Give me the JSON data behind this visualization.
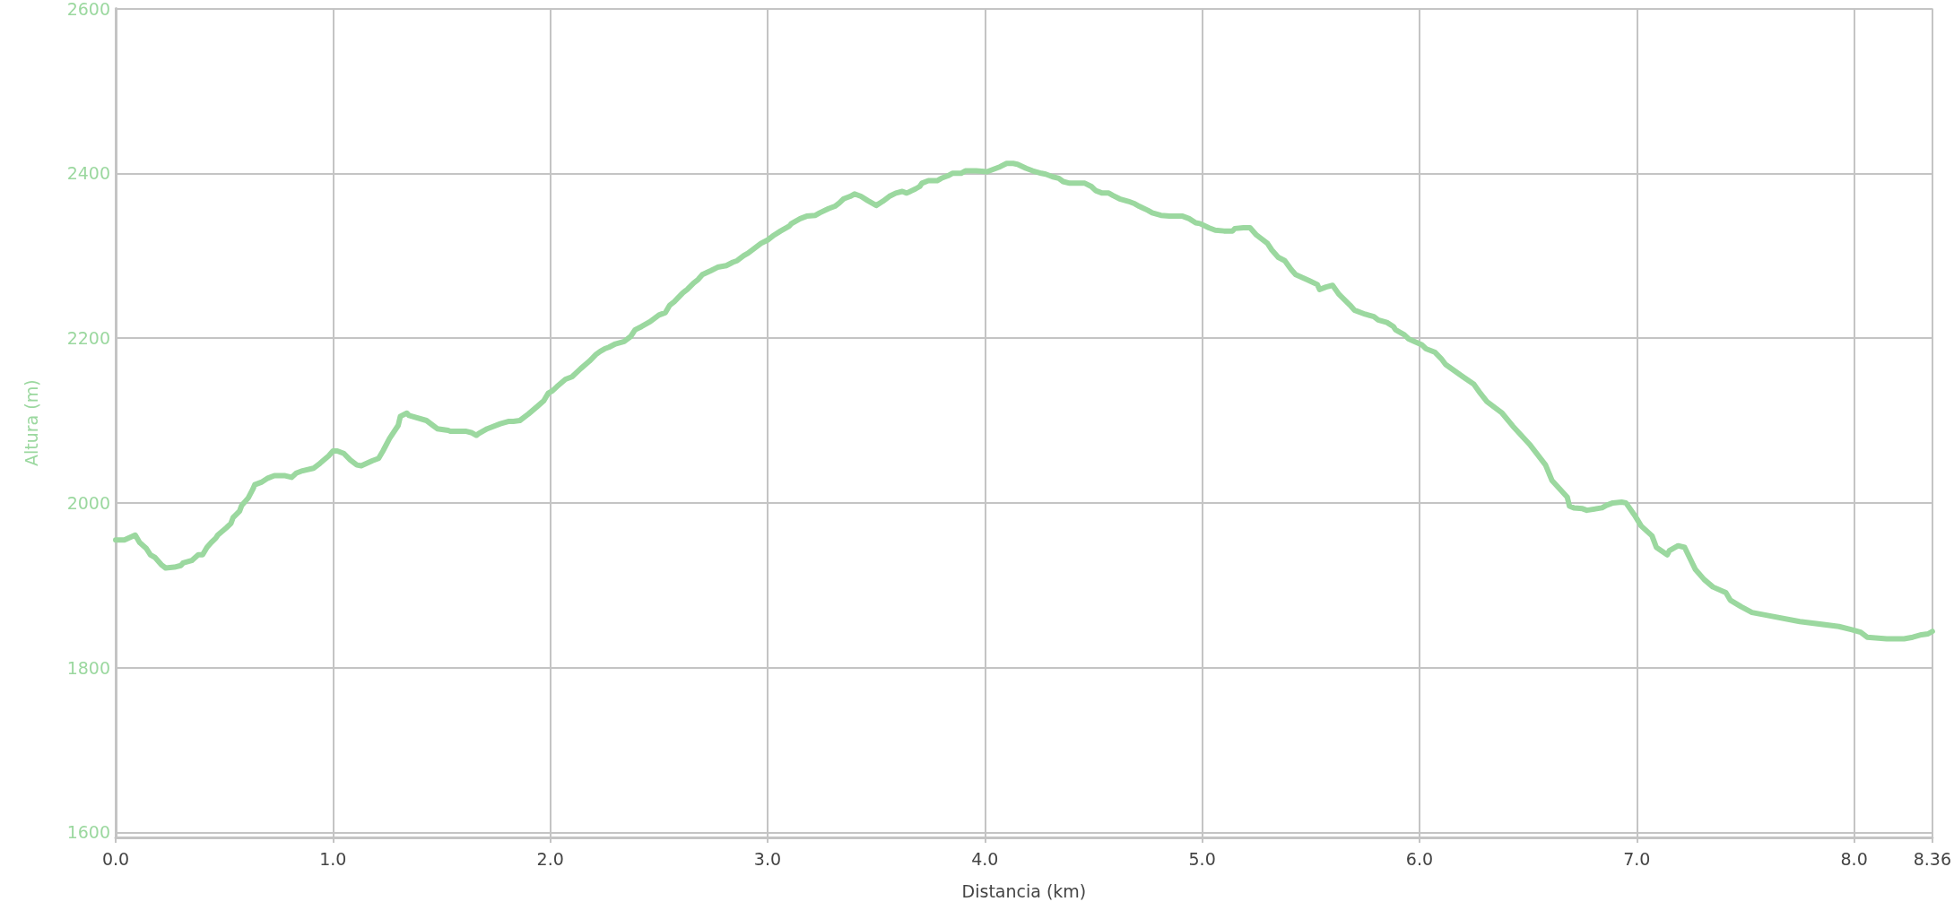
{
  "chart_data": {
    "type": "line",
    "xlabel": "Distancia (km)",
    "ylabel": "Altura (m)",
    "xlim": [
      0,
      8.36
    ],
    "ylim": [
      1594,
      2600
    ],
    "xticks": [
      {
        "value": 0,
        "label": "0.0"
      },
      {
        "value": 1,
        "label": "1.0"
      },
      {
        "value": 2,
        "label": "2.0"
      },
      {
        "value": 3,
        "label": "3.0"
      },
      {
        "value": 4,
        "label": "4.0"
      },
      {
        "value": 5,
        "label": "5.0"
      },
      {
        "value": 6,
        "label": "6.0"
      },
      {
        "value": 7,
        "label": "7.0"
      },
      {
        "value": 8,
        "label": "8.0"
      },
      8.36
    ],
    "yticks": [
      1600,
      1800,
      2000,
      2200,
      2400,
      2600
    ],
    "grid": true,
    "marker": "none",
    "line_style": "solid",
    "series": [
      {
        "color": "#9bd89f",
        "x": [
          0,
          0.04,
          0.09,
          0.11,
          0.14,
          0.16,
          0.18,
          0.21,
          0.23,
          0.27,
          0.3,
          0.31,
          0.35,
          0.38,
          0.4,
          0.42,
          0.44,
          0.46,
          0.47,
          0.51,
          0.53,
          0.54,
          0.57,
          0.58,
          0.61,
          0.63,
          0.64,
          0.67,
          0.7,
          0.73,
          0.78,
          0.81,
          0.83,
          0.86,
          0.91,
          0.94,
          0.98,
          1.0,
          1.02,
          1.05,
          1.08,
          1.11,
          1.13,
          1.18,
          1.21,
          1.23,
          1.26,
          1.3,
          1.31,
          1.34,
          1.35,
          1.43,
          1.46,
          1.48,
          1.53,
          1.54,
          1.61,
          1.64,
          1.66,
          1.67,
          1.71,
          1.77,
          1.81,
          1.83,
          1.86,
          1.9,
          1.94,
          1.97,
          1.99,
          2.01,
          2.03,
          2.07,
          2.1,
          2.14,
          2.18,
          2.21,
          2.23,
          2.25,
          2.27,
          2.3,
          2.34,
          2.37,
          2.39,
          2.42,
          2.46,
          2.5,
          2.53,
          2.55,
          2.57,
          2.61,
          2.63,
          2.66,
          2.68,
          2.7,
          2.74,
          2.77,
          2.81,
          2.84,
          2.86,
          2.89,
          2.91,
          2.94,
          2.97,
          3.0,
          3.03,
          3.06,
          3.1,
          3.11,
          3.15,
          3.18,
          3.22,
          3.24,
          3.28,
          3.31,
          3.33,
          3.35,
          3.38,
          3.4,
          3.43,
          3.46,
          3.48,
          3.5,
          3.53,
          3.56,
          3.59,
          3.62,
          3.64,
          3.68,
          3.7,
          3.71,
          3.74,
          3.78,
          3.8,
          3.83,
          3.85,
          3.89,
          3.91,
          3.96,
          4.01,
          4.04,
          4.07,
          4.1,
          4.13,
          4.15,
          4.19,
          4.22,
          4.26,
          4.28,
          4.31,
          4.34,
          4.36,
          4.39,
          4.46,
          4.49,
          4.51,
          4.54,
          4.57,
          4.59,
          4.62,
          4.66,
          4.69,
          4.71,
          4.75,
          4.77,
          4.81,
          4.85,
          4.91,
          4.94,
          4.97,
          4.99,
          5.03,
          5.06,
          5.1,
          5.14,
          5.15,
          5.19,
          5.22,
          5.25,
          5.3,
          5.32,
          5.35,
          5.38,
          5.41,
          5.43,
          5.49,
          5.53,
          5.54,
          5.57,
          5.6,
          5.63,
          5.68,
          5.7,
          5.75,
          5.79,
          5.81,
          5.85,
          5.88,
          5.89,
          5.93,
          5.95,
          6.01,
          6.03,
          6.07,
          6.1,
          6.12,
          6.2,
          6.25,
          6.28,
          6.31,
          6.34,
          6.38,
          6.43,
          6.51,
          6.58,
          6.61,
          6.68,
          6.69,
          6.71,
          6.75,
          6.77,
          6.84,
          6.86,
          6.89,
          6.93,
          6.95,
          6.99,
          7.02,
          7.07,
          7.09,
          7.14,
          7.15,
          7.19,
          7.22,
          7.27,
          7.31,
          7.35,
          7.41,
          7.43,
          7.48,
          7.53,
          7.59,
          7.75,
          7.93,
          7.99,
          8.03,
          8.06,
          8.15,
          8.23,
          8.27,
          8.31,
          8.34,
          8.36
        ],
        "values": [
          1955,
          1955,
          1961,
          1952,
          1945,
          1937,
          1934,
          1925,
          1921,
          1922,
          1924,
          1927,
          1930,
          1937,
          1937,
          1946,
          1952,
          1957,
          1961,
          1970,
          1975,
          1982,
          1990,
          1997,
          2006,
          2016,
          2022,
          2025,
          2030,
          2033,
          2033,
          2031,
          2036,
          2039,
          2042,
          2048,
          2057,
          2063,
          2063,
          2060,
          2052,
          2046,
          2045,
          2051,
          2054,
          2063,
          2078,
          2094,
          2105,
          2109,
          2106,
          2100,
          2094,
          2090,
          2088,
          2087,
          2087,
          2085,
          2082,
          2084,
          2090,
          2096,
          2099,
          2099,
          2100,
          2108,
          2117,
          2124,
          2133,
          2136,
          2141,
          2150,
          2153,
          2163,
          2172,
          2180,
          2184,
          2187,
          2189,
          2193,
          2196,
          2202,
          2210,
          2214,
          2220,
          2228,
          2231,
          2240,
          2244,
          2255,
          2259,
          2267,
          2271,
          2277,
          2282,
          2286,
          2288,
          2292,
          2294,
          2300,
          2303,
          2309,
          2315,
          2319,
          2325,
          2330,
          2336,
          2339,
          2345,
          2348,
          2349,
          2352,
          2357,
          2360,
          2364,
          2369,
          2372,
          2375,
          2372,
          2367,
          2364,
          2361,
          2366,
          2372,
          2376,
          2378,
          2376,
          2381,
          2384,
          2388,
          2391,
          2391,
          2394,
          2397,
          2400,
          2400,
          2403,
          2403,
          2402,
          2405,
          2408,
          2412,
          2412,
          2411,
          2406,
          2403,
          2400,
          2399,
          2396,
          2394,
          2390,
          2388,
          2388,
          2384,
          2379,
          2376,
          2376,
          2373,
          2369,
          2366,
          2363,
          2360,
          2355,
          2352,
          2349,
          2348,
          2348,
          2345,
          2340,
          2339,
          2334,
          2331,
          2330,
          2330,
          2333,
          2334,
          2334,
          2325,
          2315,
          2307,
          2298,
          2294,
          2283,
          2277,
          2270,
          2265,
          2259,
          2262,
          2264,
          2253,
          2240,
          2234,
          2229,
          2226,
          2222,
          2219,
          2214,
          2210,
          2204,
          2199,
          2192,
          2187,
          2183,
          2175,
          2168,
          2153,
          2144,
          2133,
          2123,
          2117,
          2109,
          2093,
          2070,
          2046,
          2027,
          2007,
          1996,
          1994,
          1993,
          1991,
          1994,
          1997,
          2000,
          2001,
          2000,
          1985,
          1972,
          1960,
          1946,
          1937,
          1942,
          1948,
          1946,
          1919,
          1907,
          1898,
          1891,
          1882,
          1874,
          1867,
          1864,
          1856,
          1850,
          1846,
          1843,
          1837,
          1835,
          1835,
          1837,
          1840,
          1841,
          1844
        ]
      }
    ]
  }
}
